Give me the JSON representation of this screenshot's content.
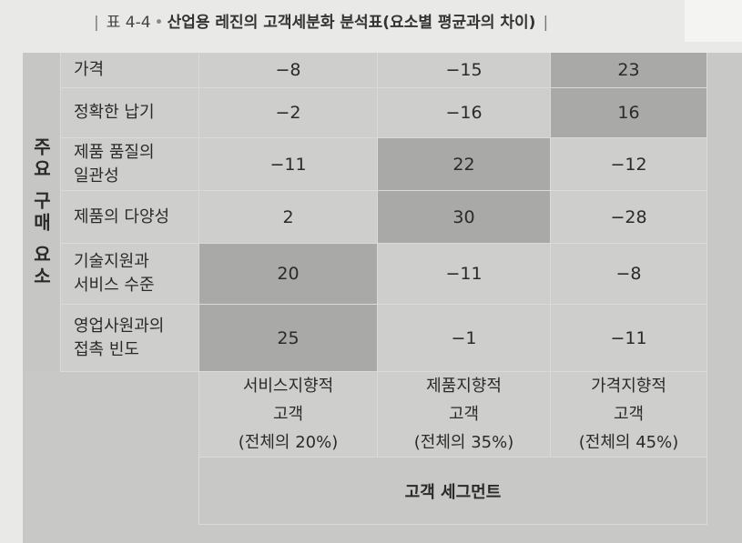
{
  "caption": {
    "label": "표 4-4",
    "title": "산업용 레진의 고객세분화 분석표(요소별 평균과의 차이)"
  },
  "side_label": "주요 구매 요소",
  "rows": [
    {
      "label": "가격",
      "values": [
        "−8",
        "−15",
        "23"
      ]
    },
    {
      "label": "정확한 납기",
      "values": [
        "−2",
        "−16",
        "16"
      ]
    },
    {
      "label": "제품 품질의\n일관성",
      "values": [
        "−11",
        "22",
        "−12"
      ]
    },
    {
      "label": "제품의 다양성",
      "values": [
        "2",
        "30",
        "−28"
      ]
    },
    {
      "label": "기술지원과\n서비스 수준",
      "values": [
        "20",
        "−11",
        "−8"
      ]
    },
    {
      "label": "영업사원과의\n접촉 빈도",
      "values": [
        "25",
        "−1",
        "−11"
      ]
    }
  ],
  "columns": [
    {
      "name": "서비스지향적",
      "sub": "고객",
      "share": "(전체의 20%)"
    },
    {
      "name": "제품지향적",
      "sub": "고객",
      "share": "(전체의 35%)"
    },
    {
      "name": "가격지향적",
      "sub": "고객",
      "share": "(전체의 45%)"
    }
  ],
  "segment_label": "고객 세그먼트",
  "highlight_color": "#a9a9a7"
}
